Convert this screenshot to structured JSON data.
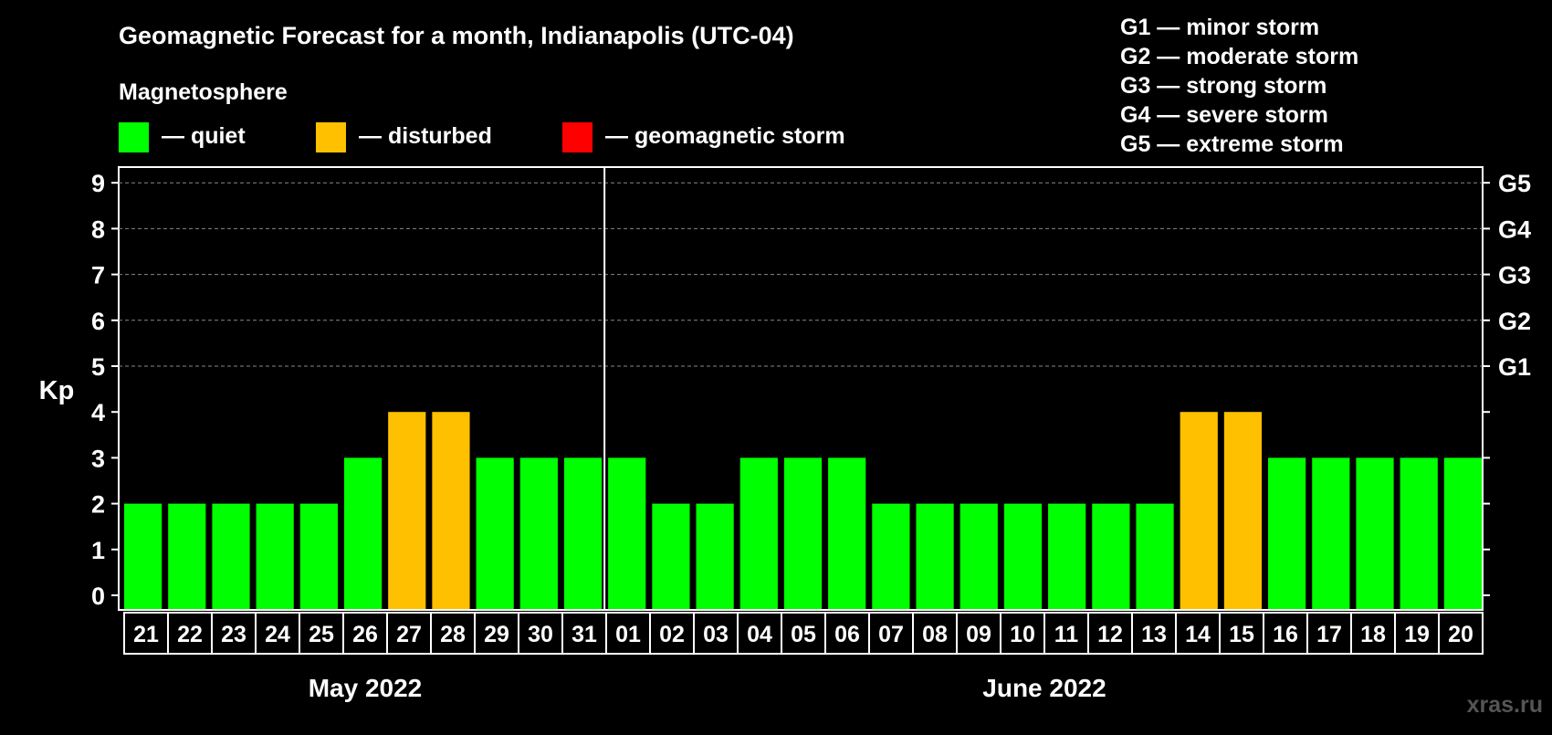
{
  "chart_data": {
    "type": "bar",
    "title": "Geomagnetic Forecast for a month, Indianapolis (UTC-04)",
    "subtitle": "Magnetosphere",
    "ylabel": "Kp",
    "ylim": [
      0,
      9
    ],
    "yticks": [
      "0",
      "1",
      "2",
      "3",
      "4",
      "5",
      "6",
      "7",
      "8",
      "9"
    ],
    "storm_levels": [
      {
        "label": "G1",
        "kp": 5
      },
      {
        "label": "G2",
        "kp": 6
      },
      {
        "label": "G3",
        "kp": 7
      },
      {
        "label": "G4",
        "kp": 8
      },
      {
        "label": "G5",
        "kp": 9
      }
    ],
    "legend": [
      {
        "label": "— quiet",
        "color": "#00ff00"
      },
      {
        "label": "— disturbed",
        "color": "#ffc000"
      },
      {
        "label": "— geomagnetic storm",
        "color": "#ff0000"
      }
    ],
    "storm_legend": [
      "G1 — minor storm",
      "G2 — moderate storm",
      "G3 — strong storm",
      "G4 — severe storm",
      "G5 — extreme storm"
    ],
    "categories": [
      "21",
      "22",
      "23",
      "24",
      "25",
      "26",
      "27",
      "28",
      "29",
      "30",
      "31",
      "01",
      "02",
      "03",
      "04",
      "05",
      "06",
      "07",
      "08",
      "09",
      "10",
      "11",
      "12",
      "13",
      "14",
      "15",
      "16",
      "17",
      "18",
      "19",
      "20"
    ],
    "values": [
      2,
      2,
      2,
      2,
      2,
      3,
      4,
      4,
      3,
      3,
      3,
      3,
      2,
      2,
      3,
      3,
      3,
      2,
      2,
      2,
      2,
      2,
      2,
      2,
      4,
      4,
      3,
      3,
      3,
      3,
      3
    ],
    "status": [
      "quiet",
      "quiet",
      "quiet",
      "quiet",
      "quiet",
      "quiet",
      "disturbed",
      "disturbed",
      "quiet",
      "quiet",
      "quiet",
      "quiet",
      "quiet",
      "quiet",
      "quiet",
      "quiet",
      "quiet",
      "quiet",
      "quiet",
      "quiet",
      "quiet",
      "quiet",
      "quiet",
      "quiet",
      "disturbed",
      "disturbed",
      "quiet",
      "quiet",
      "quiet",
      "quiet",
      "quiet"
    ],
    "months": [
      {
        "label": "May 2022",
        "first_index": 0,
        "last_index": 10
      },
      {
        "label": "June 2022",
        "first_index": 11,
        "last_index": 30
      }
    ],
    "grid": true
  },
  "colors": {
    "quiet": "#00ff00",
    "disturbed": "#ffc000",
    "storm": "#ff0000",
    "background": "#000000",
    "foreground": "#ffffff"
  },
  "watermark": "xras.ru"
}
